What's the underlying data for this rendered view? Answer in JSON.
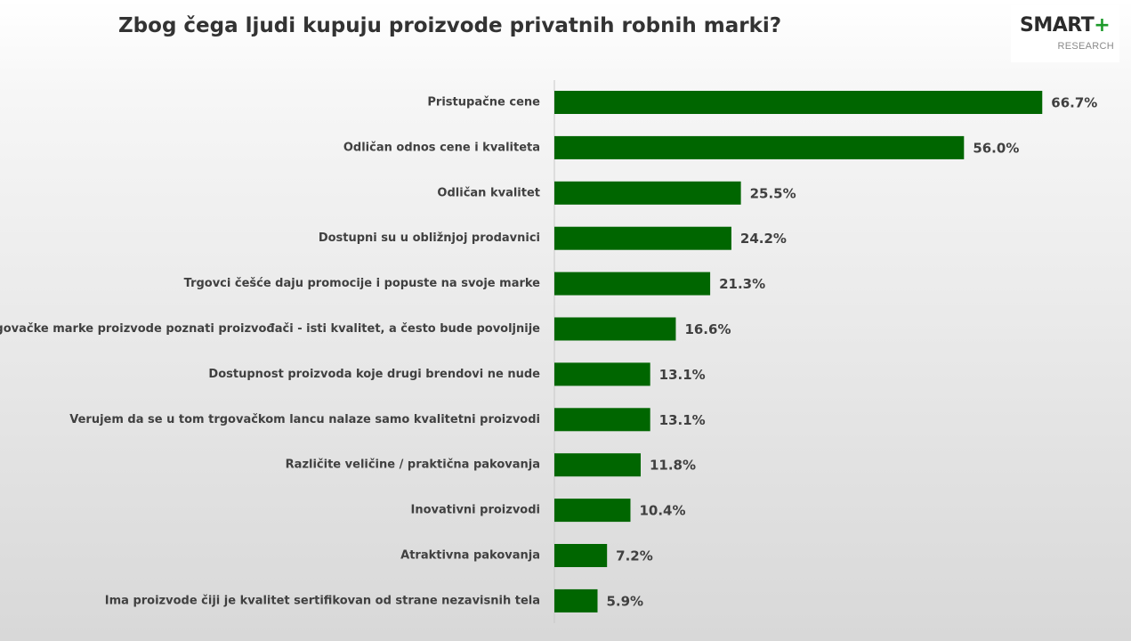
{
  "title": "Zbog čega ljudi kupuju proizvode privatnih robnih marki?",
  "logo": {
    "main": "SMART",
    "plus": "+",
    "sub": "RESEARCH"
  },
  "colors": {
    "bar": "#006600",
    "axis": "#c8c8c8",
    "logo_accent": "#1d9a2a"
  },
  "chart_data": {
    "type": "bar",
    "orientation": "horizontal",
    "categories": [
      "Pristupačne cene",
      "Odličan odnos cene i kvaliteta",
      "Odličan kvalitet",
      "Dostupni su u obližnjoj prodavnici",
      "Trgovci češće daju promocije i popuste na svoje marke",
      "Trgovačke marke proizvode poznati proizvođači - isti kvalitet, a često bude povoljnije",
      "Dostupnost proizvoda koje drugi brendovi ne nude",
      "Verujem da se u tom trgovačkom lancu nalaze samo kvalitetni proizvodi",
      "Različite veličine / praktična pakovanja",
      "Inovativni proizvodi",
      "Atraktivna pakovanja",
      "Ima proizvode čiji je kvalitet sertifikovan od strane nezavisnih tela"
    ],
    "values": [
      66.7,
      56.0,
      25.5,
      24.2,
      21.3,
      16.6,
      13.1,
      13.1,
      11.8,
      10.4,
      7.2,
      5.9
    ],
    "value_labels": [
      "66.7%",
      "56.0%",
      "25.5%",
      "24.2%",
      "21.3%",
      "16.6%",
      "13.1%",
      "13.1%",
      "11.8%",
      "10.4%",
      "7.2%",
      "5.9%"
    ],
    "xlim": [
      0,
      70
    ],
    "grid": false,
    "legend": "none"
  }
}
